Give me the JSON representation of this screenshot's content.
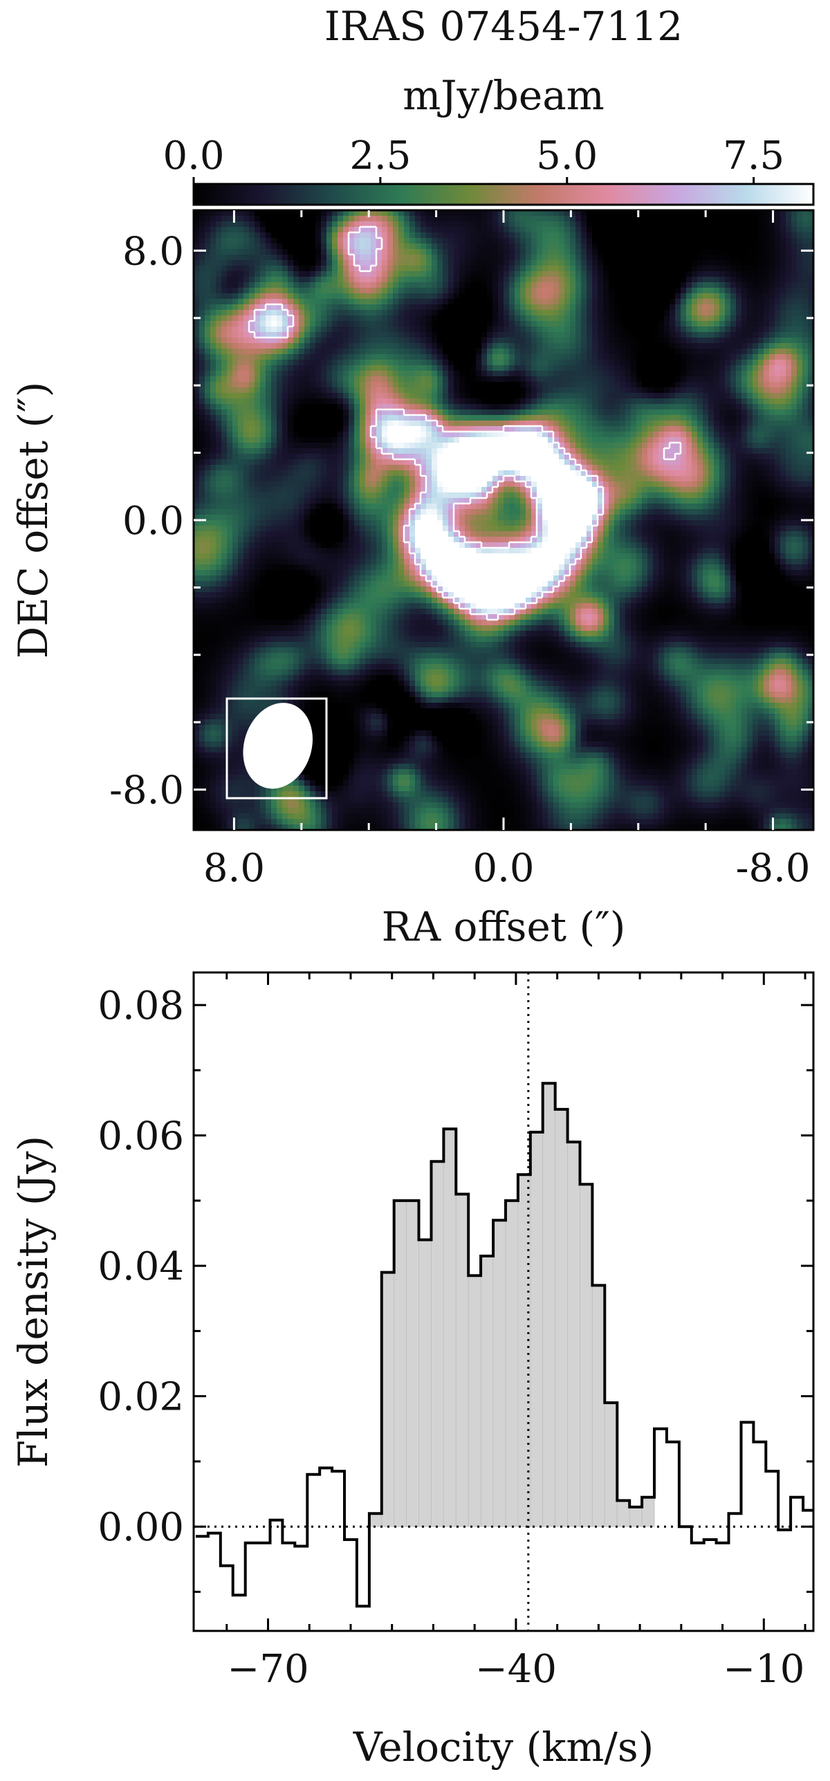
{
  "chart_data": [
    {
      "type": "heatmap",
      "title": "IRAS 07454-7112",
      "colorbar": {
        "label": "mJy/beam",
        "ticks": [
          "0.0",
          "2.5",
          "5.0",
          "7.5"
        ],
        "tick_values": [
          0,
          2.5,
          5.0,
          7.5
        ],
        "range": [
          0,
          8.3
        ],
        "colors": [
          "#000000",
          "#1a1530",
          "#1f4a4a",
          "#2f7a55",
          "#6e8a3a",
          "#c27a6a",
          "#e08aa0",
          "#c9a6df",
          "#b9d9ea",
          "#ffffff"
        ]
      },
      "xlabel": "RA offset (″)",
      "ylabel": "DEC offset (″)",
      "x_ticks": [
        "8.0",
        "0.0",
        "-8.0"
      ],
      "x_tick_values": [
        8,
        0,
        -8
      ],
      "y_ticks": [
        "8.0",
        "0.0",
        "-8.0"
      ],
      "y_tick_values": [
        8,
        0,
        -8
      ],
      "xlim": [
        9.2,
        -9.2
      ],
      "ylim": [
        -9.2,
        9.2
      ],
      "beam": {
        "major": 1.3,
        "minor": 1.0,
        "center_ra": 6.7,
        "center_dec": -6.7
      },
      "ring_features": [
        {
          "ra": 0.9,
          "dec": 1.3,
          "peak": 7.8
        },
        {
          "ra": -0.7,
          "dec": 2.0,
          "peak": 7.2
        },
        {
          "ra": -1.8,
          "dec": 0.6,
          "peak": 6.6
        },
        {
          "ra": 1.3,
          "dec": -1.5,
          "peak": 7.6
        },
        {
          "ra": 0.1,
          "dec": -1.9,
          "peak": 8.2
        }
      ],
      "contour_level": 6.2
    },
    {
      "type": "line",
      "xlabel": "Velocity (km/s)",
      "ylabel": "Flux density (Jy)",
      "xlim": [
        -79,
        -4
      ],
      "ylim": [
        -0.016,
        0.085
      ],
      "x_ticks": [
        "−70",
        "−40",
        "−10"
      ],
      "x_tick_values": [
        -70,
        -40,
        -10
      ],
      "y_ticks": [
        "0.00",
        "0.02",
        "0.04",
        "0.06",
        "0.08"
      ],
      "y_tick_values": [
        0,
        0.02,
        0.04,
        0.06,
        0.08
      ],
      "systemic_velocity": -38.5,
      "zero_line": 0,
      "shaded_range": [
        -58,
        -24
      ],
      "series": [
        {
          "velocity": [
            -78,
            -76.5,
            -75,
            -73.5,
            -72,
            -70.5,
            -69,
            -67.5,
            -66,
            -64.5,
            -63,
            -61.5,
            -60,
            -58.5,
            -57,
            -55.5,
            -54,
            -52.5,
            -51,
            -49.5,
            -48,
            -46.5,
            -45,
            -43.5,
            -42,
            -40.5,
            -39,
            -37.5,
            -36,
            -34.5,
            -33,
            -31.5,
            -30,
            -28.5,
            -27,
            -25.5,
            -24,
            -22.5,
            -21,
            -19.5,
            -18,
            -16.5,
            -15,
            -13.5,
            -12,
            -10.5,
            -9,
            -7.5,
            -6,
            -4.5
          ],
          "flux": [
            -0.0015,
            -0.001,
            -0.006,
            -0.0105,
            -0.0025,
            -0.0025,
            0.001,
            -0.0025,
            -0.003,
            0.008,
            0.009,
            0.0085,
            -0.002,
            -0.0122,
            0.002,
            0.039,
            0.05,
            0.05,
            0.044,
            0.056,
            0.061,
            0.051,
            0.0385,
            0.0415,
            0.047,
            0.05,
            0.054,
            0.0605,
            0.068,
            0.064,
            0.059,
            0.0525,
            0.037,
            0.019,
            0.004,
            0.003,
            0.0045,
            0.015,
            0.013,
            0.0,
            -0.0025,
            -0.002,
            -0.0025,
            0.002,
            0.016,
            0.013,
            0.0085,
            -0.0005,
            0.0045,
            0.0025
          ]
        }
      ]
    }
  ]
}
